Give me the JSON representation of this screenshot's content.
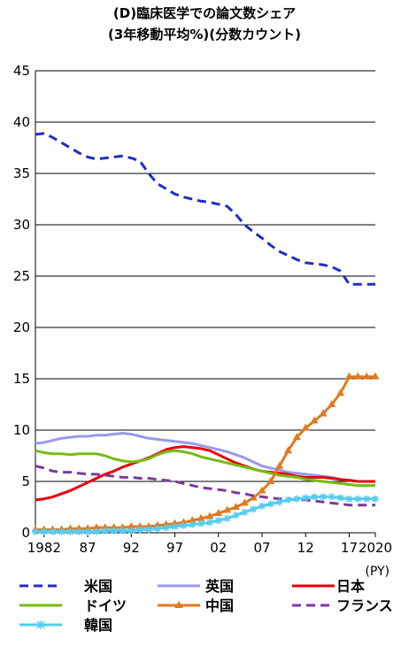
{
  "chart_data": {
    "type": "line",
    "title": "(D)臨床医学での論文数シェア",
    "subtitle": "(3年移動平均%)(分数カウント)",
    "x_unit": "(PY)",
    "x_tick_labels": [
      "1982",
      "87",
      "92",
      "97",
      "02",
      "07",
      "12",
      "17",
      "2020"
    ],
    "x_tick_years": [
      1982,
      1987,
      1992,
      1997,
      2002,
      2007,
      2012,
      2017,
      2020
    ],
    "y_ticks": [
      0,
      5,
      10,
      15,
      20,
      25,
      30,
      35,
      40,
      45
    ],
    "xlim": [
      1981,
      2020
    ],
    "ylim": [
      0,
      45
    ],
    "grid": true,
    "legend_position": "bottom",
    "x": [
      1981,
      1982,
      1983,
      1984,
      1985,
      1986,
      1987,
      1988,
      1989,
      1990,
      1991,
      1992,
      1993,
      1994,
      1995,
      1996,
      1997,
      1998,
      1999,
      2000,
      2001,
      2002,
      2003,
      2004,
      2005,
      2006,
      2007,
      2008,
      2009,
      2010,
      2011,
      2012,
      2013,
      2014,
      2015,
      2016,
      2017,
      2018,
      2019,
      2020
    ],
    "series": [
      {
        "name": "米国",
        "color": "#1f2ec8",
        "style": "dashed",
        "marker": "none",
        "values": [
          38.8,
          38.9,
          38.5,
          38.0,
          37.5,
          37.0,
          36.6,
          36.4,
          36.5,
          36.6,
          36.7,
          36.5,
          36.2,
          35.0,
          34.0,
          33.5,
          33.0,
          32.7,
          32.5,
          32.3,
          32.2,
          32.0,
          31.8,
          31.0,
          30.0,
          29.3,
          28.7,
          28.0,
          27.4,
          27.0,
          26.6,
          26.3,
          26.2,
          26.1,
          25.9,
          25.5,
          24.2,
          24.2,
          24.2,
          24.2
        ]
      },
      {
        "name": "英国",
        "color": "#9999ee",
        "style": "solid",
        "marker": "none",
        "values": [
          8.7,
          8.8,
          9.0,
          9.2,
          9.3,
          9.4,
          9.4,
          9.5,
          9.5,
          9.6,
          9.7,
          9.6,
          9.4,
          9.2,
          9.1,
          9.0,
          8.9,
          8.8,
          8.7,
          8.5,
          8.3,
          8.1,
          7.9,
          7.6,
          7.3,
          6.9,
          6.5,
          6.3,
          6.1,
          5.9,
          5.8,
          5.7,
          5.6,
          5.5,
          5.4,
          5.2,
          5.1,
          5.0,
          5.0,
          5.0
        ]
      },
      {
        "name": "日本",
        "color": "#e8000b",
        "style": "solid",
        "marker": "none",
        "values": [
          3.2,
          3.3,
          3.5,
          3.8,
          4.1,
          4.5,
          4.9,
          5.3,
          5.7,
          6.0,
          6.4,
          6.7,
          7.0,
          7.3,
          7.7,
          8.1,
          8.3,
          8.4,
          8.3,
          8.2,
          8.0,
          7.6,
          7.2,
          6.8,
          6.5,
          6.2,
          6.0,
          5.9,
          5.8,
          5.7,
          5.5,
          5.4,
          5.4,
          5.4,
          5.3,
          5.2,
          5.1,
          5.0,
          5.0,
          5.0
        ]
      },
      {
        "name": "ドイツ",
        "color": "#77bb11",
        "style": "solid",
        "marker": "none",
        "values": [
          8.0,
          7.8,
          7.7,
          7.7,
          7.6,
          7.7,
          7.7,
          7.7,
          7.5,
          7.2,
          7.0,
          6.9,
          7.0,
          7.2,
          7.6,
          7.9,
          8.0,
          7.9,
          7.7,
          7.4,
          7.2,
          7.0,
          6.8,
          6.6,
          6.4,
          6.2,
          6.0,
          5.8,
          5.6,
          5.5,
          5.4,
          5.2,
          5.1,
          5.0,
          4.9,
          4.8,
          4.7,
          4.6,
          4.6,
          4.6
        ]
      },
      {
        "name": "中国",
        "color": "#e07a1f",
        "style": "solid",
        "marker": "triangle",
        "values": [
          0.3,
          0.3,
          0.3,
          0.3,
          0.4,
          0.4,
          0.4,
          0.5,
          0.5,
          0.5,
          0.5,
          0.6,
          0.6,
          0.6,
          0.7,
          0.8,
          0.9,
          1.0,
          1.2,
          1.4,
          1.6,
          1.9,
          2.2,
          2.5,
          2.9,
          3.4,
          4.1,
          5.0,
          6.5,
          8.0,
          9.3,
          10.2,
          10.9,
          11.6,
          12.5,
          13.6,
          15.2,
          15.2,
          15.2,
          15.2
        ]
      },
      {
        "name": "フランス",
        "color": "#7a3aa0",
        "style": "dashed",
        "marker": "none",
        "values": [
          6.5,
          6.3,
          6.0,
          5.9,
          5.9,
          5.8,
          5.7,
          5.7,
          5.6,
          5.5,
          5.4,
          5.4,
          5.3,
          5.3,
          5.2,
          5.1,
          5.0,
          4.8,
          4.6,
          4.4,
          4.3,
          4.2,
          4.1,
          3.9,
          3.8,
          3.6,
          3.5,
          3.4,
          3.3,
          3.3,
          3.2,
          3.2,
          3.1,
          3.0,
          2.9,
          2.8,
          2.7,
          2.7,
          2.7,
          2.7
        ]
      },
      {
        "name": "韓国",
        "color": "#55ccf2",
        "style": "solid",
        "marker": "asterisk",
        "values": [
          0.1,
          0.1,
          0.1,
          0.1,
          0.1,
          0.1,
          0.1,
          0.1,
          0.2,
          0.2,
          0.2,
          0.2,
          0.3,
          0.3,
          0.4,
          0.5,
          0.6,
          0.7,
          0.8,
          0.9,
          1.0,
          1.2,
          1.4,
          1.7,
          2.0,
          2.3,
          2.6,
          2.8,
          3.0,
          3.2,
          3.3,
          3.4,
          3.5,
          3.5,
          3.5,
          3.4,
          3.3,
          3.3,
          3.3,
          3.3
        ]
      }
    ]
  }
}
